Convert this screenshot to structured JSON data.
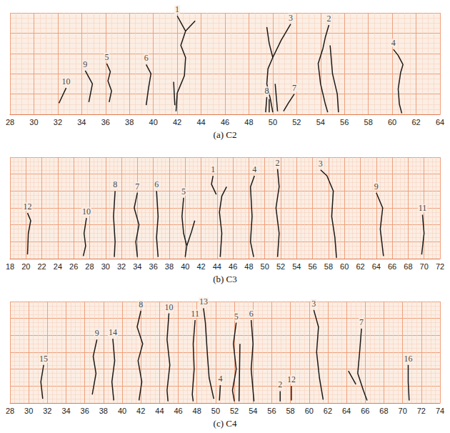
{
  "chart_data": [
    {
      "type": "line",
      "title": "(a) C2",
      "color": "#1a1a1a",
      "grid": true,
      "tick_labels": "x",
      "xlim": [
        28,
        64
      ],
      "xticks": [
        28,
        30,
        32,
        34,
        36,
        38,
        40,
        42,
        44,
        46,
        48,
        50,
        52,
        54,
        56,
        58,
        60,
        62,
        64
      ],
      "ylim": [
        0,
        10
      ],
      "yticks": [
        0,
        2,
        4,
        6,
        8,
        10
      ],
      "series": [
        {
          "name": "10",
          "values": [
            [
              32.1,
              1.1
            ],
            [
              32.3,
              1.6
            ],
            [
              32.7,
              2.6
            ]
          ]
        },
        {
          "name": "9",
          "values": [
            [
              34.3,
              4.3
            ],
            [
              34.9,
              3.0
            ],
            [
              34.6,
              1.2
            ]
          ]
        },
        {
          "name": "5",
          "values": [
            [
              36.1,
              5.0
            ],
            [
              36.4,
              4.2
            ],
            [
              36.2,
              3.3
            ],
            [
              36.5,
              2.3
            ],
            [
              36.3,
              1.2
            ]
          ]
        },
        {
          "name": "6",
          "values": [
            [
              39.4,
              4.9
            ],
            [
              39.8,
              4.0
            ],
            [
              39.6,
              2.6
            ],
            [
              39.4,
              0.9
            ]
          ]
        },
        {
          "name": "1",
          "values": [
            [
              41.9,
              0.3
            ],
            [
              42.0,
              2.1
            ],
            [
              42.6,
              3.8
            ],
            [
              42.7,
              5.6
            ],
            [
              42.3,
              6.8
            ],
            [
              42.7,
              8.2
            ],
            [
              42.0,
              9.7
            ],
            null,
            [
              42.7,
              8.2
            ],
            [
              43.5,
              9.2
            ],
            null,
            [
              41.7,
              3.2
            ],
            [
              41.8,
              0.9
            ]
          ]
        },
        {
          "name": "3",
          "values": [
            [
              50.0,
              0.2
            ],
            [
              49.8,
              1.5
            ],
            [
              49.5,
              3.0
            ],
            [
              49.6,
              4.5
            ],
            [
              50.0,
              5.6
            ],
            [
              49.7,
              7.0
            ],
            [
              49.5,
              8.6
            ],
            null,
            [
              50.0,
              5.6
            ],
            [
              50.7,
              7.3
            ],
            [
              51.5,
              8.9
            ],
            null,
            [
              50.2,
              3.0
            ],
            [
              50.4,
              0.3
            ]
          ]
        },
        {
          "name": "8",
          "values": [
            [
              49.4,
              0.2
            ],
            [
              49.5,
              1.7
            ],
            null,
            [
              49.7,
              0.2
            ],
            [
              49.7,
              1.5
            ]
          ]
        },
        {
          "name": "7",
          "values": [
            [
              50.9,
              0.3
            ],
            [
              51.3,
              1.1
            ],
            [
              51.8,
              2.0
            ]
          ]
        },
        {
          "name": "2",
          "values": [
            [
              54.7,
              8.8
            ],
            [
              54.4,
              7.6
            ],
            [
              54.2,
              6.5
            ],
            [
              53.8,
              5.0
            ],
            [
              54.0,
              3.0
            ],
            [
              54.4,
              1.0
            ],
            [
              54.6,
              0.2
            ],
            null,
            [
              54.8,
              6.8
            ],
            [
              55.0,
              4.0
            ],
            [
              55.4,
              2.0
            ],
            [
              55.5,
              0.2
            ]
          ]
        },
        {
          "name": "4",
          "values": [
            [
              60.1,
              6.4
            ],
            [
              60.5,
              5.8
            ],
            [
              60.9,
              4.9
            ],
            [
              60.7,
              4.1
            ],
            [
              60.5,
              2.5
            ],
            [
              60.6,
              1.0
            ],
            [
              60.8,
              0.1
            ]
          ]
        }
      ]
    },
    {
      "type": "line",
      "title": "(b) C3",
      "color": "#1a1a1a",
      "grid": true,
      "tick_labels": "x",
      "xlim": [
        18,
        72
      ],
      "xticks": [
        18,
        20,
        22,
        24,
        26,
        28,
        30,
        32,
        34,
        36,
        38,
        40,
        42,
        44,
        46,
        48,
        50,
        52,
        54,
        56,
        58,
        60,
        62,
        64,
        66,
        68,
        70,
        72
      ],
      "ylim": [
        0,
        12
      ],
      "yticks": [
        0,
        2,
        4,
        6,
        8,
        10,
        12
      ],
      "series": [
        {
          "name": "12",
          "values": [
            [
              20.2,
              5.4
            ],
            [
              20.6,
              4.5
            ],
            [
              20.3,
              3.0
            ],
            [
              20.2,
              0.5
            ]
          ]
        },
        {
          "name": "10",
          "values": [
            [
              27.6,
              4.8
            ],
            [
              27.3,
              3.0
            ],
            [
              27.5,
              1.5
            ],
            [
              27.2,
              0.3
            ]
          ]
        },
        {
          "name": "8",
          "values": [
            [
              31.2,
              8.0
            ],
            [
              31.0,
              5.0
            ],
            [
              31.2,
              2.0
            ],
            [
              31.1,
              0.2
            ]
          ]
        },
        {
          "name": "7",
          "values": [
            [
              34.0,
              7.8
            ],
            [
              33.6,
              6.0
            ],
            [
              34.2,
              4.0
            ],
            [
              33.8,
              2.0
            ],
            [
              34.0,
              0.2
            ]
          ]
        },
        {
          "name": "6",
          "values": [
            [
              36.4,
              8.0
            ],
            [
              36.6,
              5.0
            ],
            [
              36.4,
              2.5
            ],
            [
              36.6,
              0.2
            ]
          ]
        },
        {
          "name": "5",
          "values": [
            [
              39.8,
              7.2
            ],
            [
              39.6,
              5.0
            ],
            [
              39.8,
              3.0
            ],
            [
              40.2,
              1.5
            ],
            [
              40.0,
              0.2
            ],
            null,
            [
              40.2,
              1.5
            ],
            [
              40.8,
              3.2
            ],
            [
              41.2,
              4.5
            ]
          ]
        },
        {
          "name": "1",
          "values": [
            [
              45.2,
              8.5
            ],
            [
              44.6,
              7.4
            ],
            [
              44.3,
              5.5
            ],
            [
              44.6,
              3.0
            ],
            [
              44.4,
              0.2
            ],
            null,
            [
              43.5,
              9.8
            ],
            [
              43.3,
              8.8
            ],
            [
              43.9,
              7.6
            ]
          ]
        },
        {
          "name": "4",
          "values": [
            [
              48.7,
              9.8
            ],
            [
              48.2,
              8.5
            ],
            [
              48.4,
              5.0
            ],
            [
              48.2,
              2.0
            ],
            [
              48.6,
              0.2
            ]
          ]
        },
        {
          "name": "2",
          "values": [
            [
              51.6,
              10.6
            ],
            [
              51.8,
              8.5
            ],
            [
              51.4,
              6.0
            ],
            [
              51.8,
              3.0
            ],
            [
              51.6,
              0.2
            ]
          ]
        },
        {
          "name": "3",
          "values": [
            [
              57.0,
              10.5
            ],
            [
              57.8,
              9.8
            ],
            [
              58.6,
              8.0
            ],
            [
              58.4,
              5.0
            ],
            [
              58.8,
              2.5
            ],
            [
              59.0,
              0.1
            ]
          ]
        },
        {
          "name": "9",
          "values": [
            [
              64.0,
              7.8
            ],
            [
              64.8,
              6.0
            ],
            [
              64.5,
              3.5
            ],
            [
              64.9,
              0.3
            ]
          ]
        },
        {
          "name": "11",
          "values": [
            [
              69.8,
              5.2
            ],
            [
              70.0,
              3.0
            ],
            [
              69.7,
              0.5
            ]
          ]
        }
      ]
    },
    {
      "type": "line",
      "title": "(c) C4",
      "color": "#1a1a1a",
      "grid": true,
      "tick_labels": "x",
      "xlim": [
        28,
        74
      ],
      "xticks": [
        28,
        30,
        32,
        34,
        36,
        38,
        40,
        42,
        44,
        46,
        48,
        50,
        52,
        54,
        56,
        58,
        60,
        62,
        64,
        66,
        68,
        70,
        72,
        74
      ],
      "ylim": [
        0,
        12
      ],
      "yticks": [
        0,
        2,
        4,
        6,
        8,
        10,
        12
      ],
      "series": [
        {
          "name": "15",
          "values": [
            [
              31.6,
              4.5
            ],
            [
              31.3,
              2.5
            ],
            [
              31.5,
              0.5
            ]
          ]
        },
        {
          "name": "9",
          "values": [
            [
              37.3,
              7.5
            ],
            [
              36.9,
              5.5
            ],
            [
              37.2,
              3.5
            ],
            [
              36.8,
              1.0
            ]
          ]
        },
        {
          "name": "14",
          "values": [
            [
              39.0,
              7.6
            ],
            [
              39.2,
              5.0
            ],
            [
              38.9,
              2.5
            ],
            [
              39.1,
              0.3
            ]
          ]
        },
        {
          "name": "8",
          "values": [
            [
              42.0,
              10.9
            ],
            [
              41.6,
              9.0
            ],
            [
              42.2,
              7.0
            ],
            [
              41.7,
              5.0
            ],
            [
              42.1,
              2.5
            ],
            [
              41.8,
              0.3
            ]
          ]
        },
        {
          "name": "10",
          "values": [
            [
              45.0,
              10.6
            ],
            [
              44.8,
              7.5
            ],
            [
              45.1,
              4.5
            ],
            [
              44.8,
              1.5
            ],
            [
              44.9,
              0.2
            ]
          ]
        },
        {
          "name": "11",
          "values": [
            [
              47.8,
              9.8
            ],
            [
              47.6,
              7.0
            ],
            [
              47.7,
              4.0
            ],
            [
              47.5,
              1.0
            ],
            [
              47.6,
              0.2
            ]
          ]
        },
        {
          "name": "13",
          "values": [
            [
              48.7,
              11.2
            ],
            [
              48.9,
              9.5
            ],
            [
              49.1,
              6.0
            ],
            [
              49.3,
              3.0
            ],
            [
              49.8,
              0.5
            ]
          ]
        },
        {
          "name": "4",
          "values": [
            [
              50.5,
              2.1
            ],
            [
              50.4,
              0.3
            ]
          ]
        },
        {
          "name": "5",
          "values": [
            [
              52.2,
              9.5
            ],
            [
              51.9,
              7.0
            ],
            [
              52.2,
              4.0
            ],
            [
              51.8,
              1.5
            ],
            [
              52.0,
              0.2
            ],
            null,
            [
              52.6,
              7.0
            ],
            [
              52.5,
              0.2
            ]
          ]
        },
        {
          "name": "6",
          "values": [
            [
              53.8,
              9.8
            ],
            [
              54.0,
              7.0
            ],
            [
              53.8,
              4.0
            ],
            [
              54.1,
              0.2
            ]
          ]
        },
        {
          "name": "2",
          "values": [
            [
              56.9,
              1.4
            ],
            [
              56.9,
              0.2
            ]
          ]
        },
        {
          "name": "12",
          "values": [
            [
              58.1,
              2.0
            ],
            [
              58.1,
              0.3
            ]
          ]
        },
        {
          "name": "3",
          "values": [
            [
              60.5,
              11.0
            ],
            [
              61.0,
              9.0
            ],
            [
              60.8,
              6.0
            ],
            [
              61.1,
              3.0
            ],
            [
              61.5,
              0.4
            ]
          ]
        },
        {
          "name": "7",
          "values": [
            [
              65.6,
              8.8
            ],
            [
              65.4,
              6.0
            ],
            [
              65.2,
              3.5
            ],
            [
              65.8,
              1.5
            ],
            [
              66.2,
              0.3
            ],
            null,
            [
              64.2,
              3.8
            ],
            [
              65.0,
              2.2
            ]
          ]
        },
        {
          "name": "16",
          "values": [
            [
              70.6,
              4.5
            ],
            [
              70.6,
              2.5
            ],
            [
              70.7,
              0.3
            ]
          ]
        }
      ]
    }
  ]
}
